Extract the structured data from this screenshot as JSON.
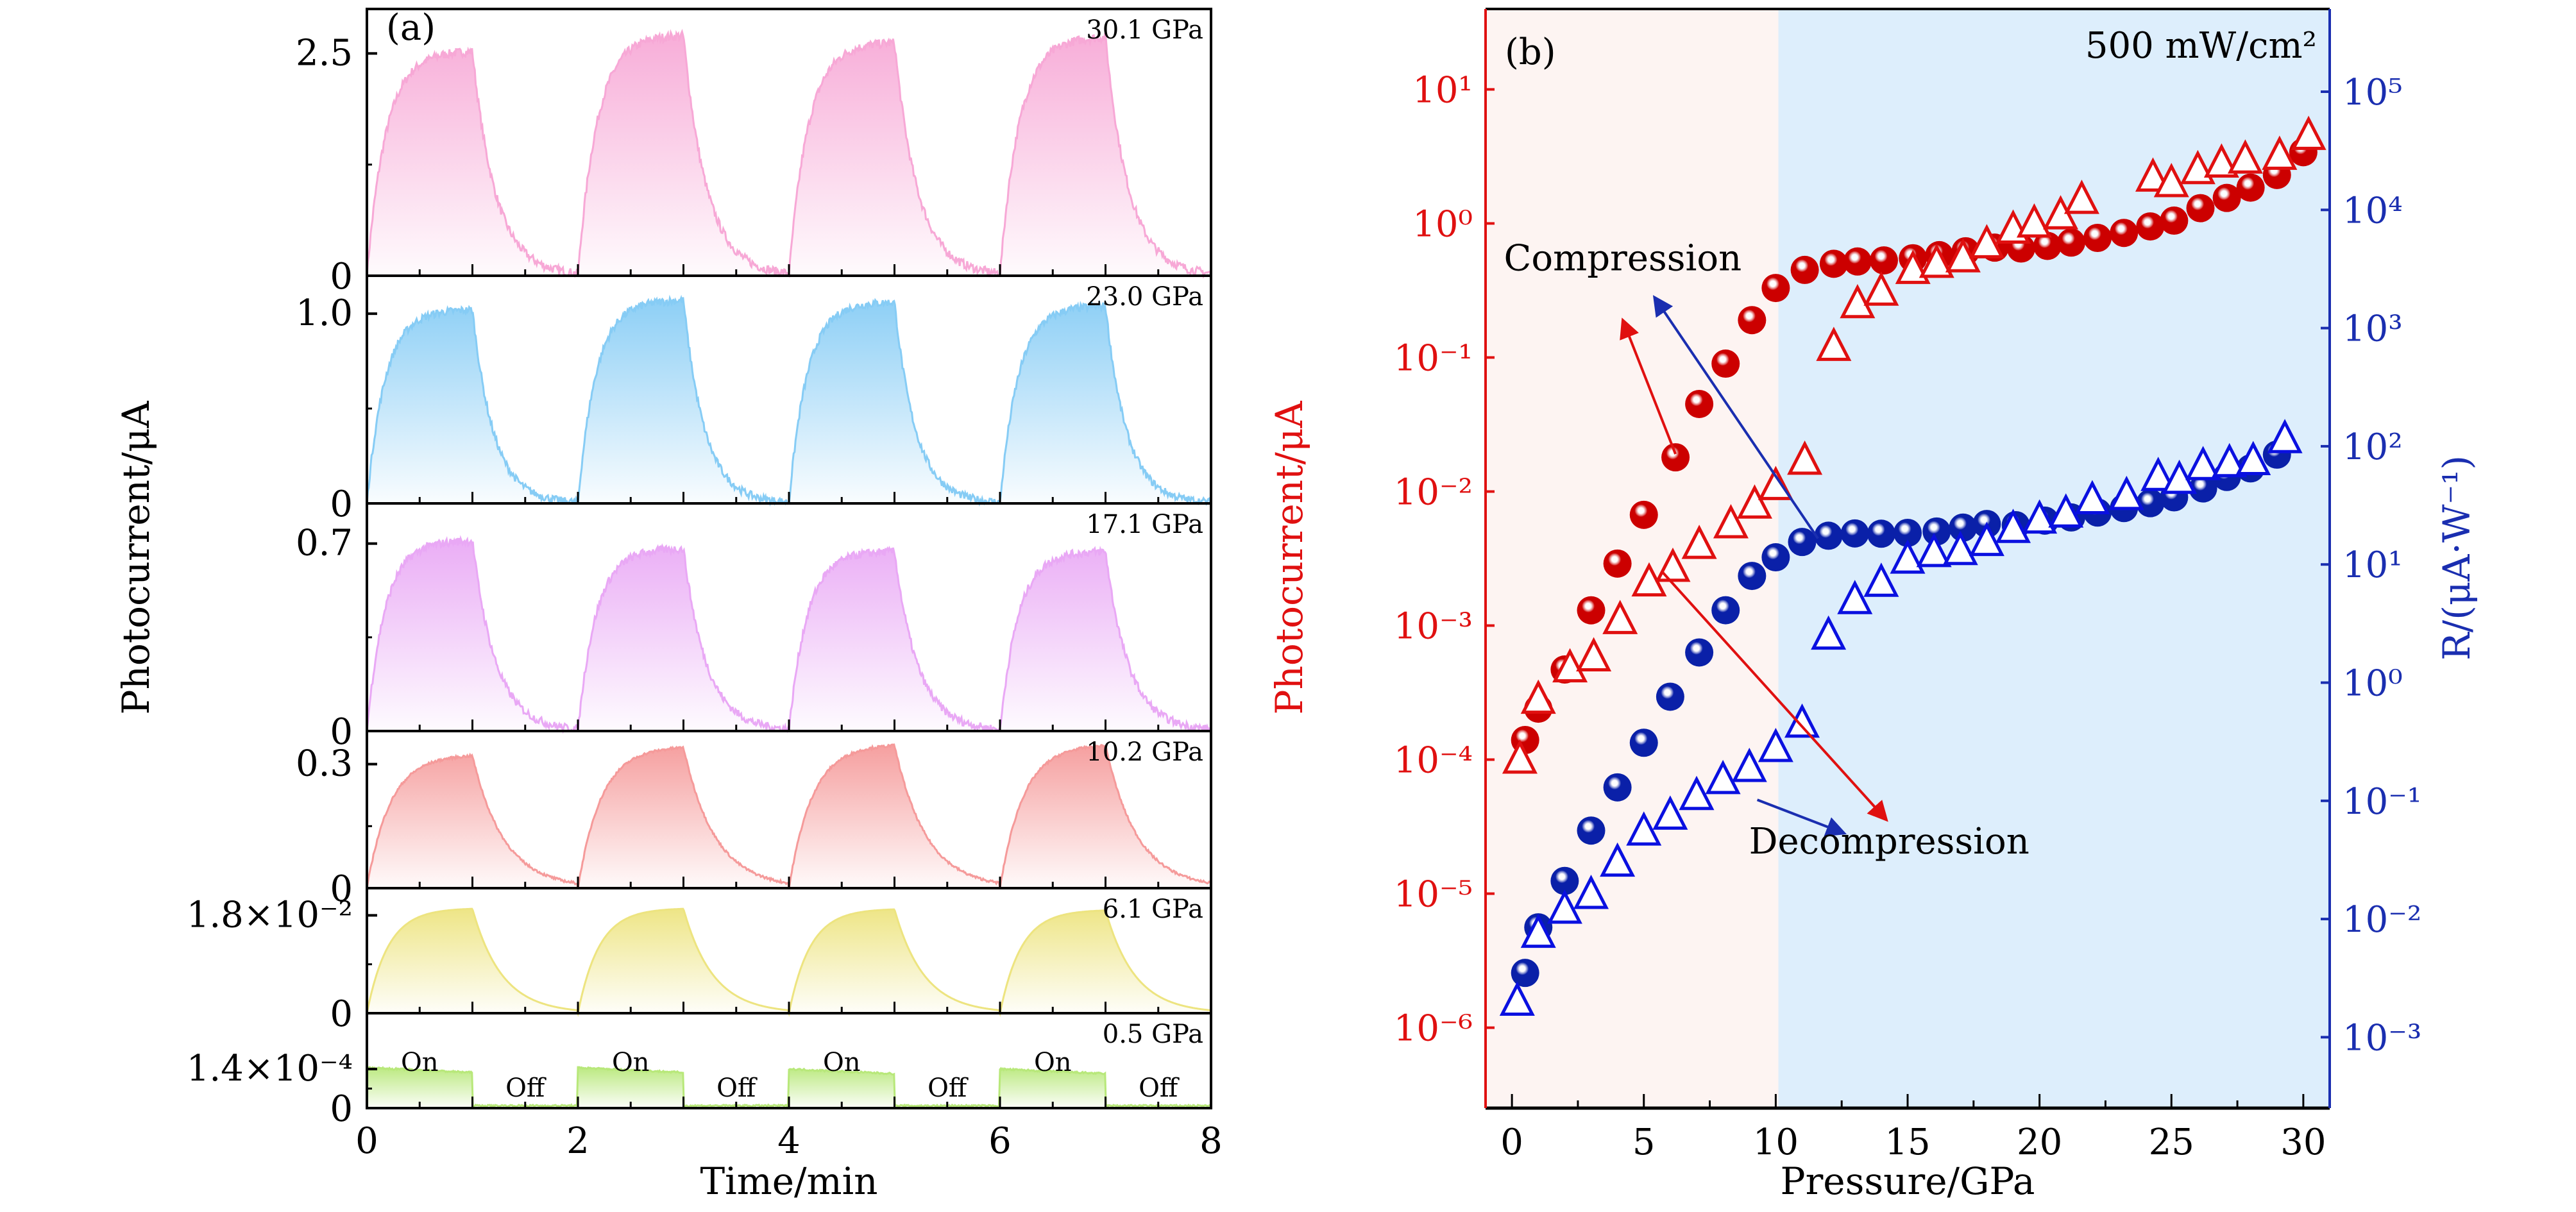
{
  "figure": {
    "panel_a_label": "(a)",
    "panel_b_label": "(b)"
  },
  "chart_data": [
    {
      "id": "panel-a",
      "type": "area",
      "title": "(a)",
      "xlabel": "Time/min",
      "ylabel": "Photocurrent/μA",
      "xlim": [
        0,
        8
      ],
      "xticks": [
        0,
        2,
        4,
        6,
        8
      ],
      "xtick_labels": [
        "0",
        "2",
        "4",
        "6",
        "8"
      ],
      "light_cycles": [
        {
          "on": [
            0,
            1
          ],
          "off": [
            1,
            2
          ]
        },
        {
          "on": [
            2,
            3
          ],
          "off": [
            3,
            4
          ]
        },
        {
          "on": [
            4,
            5
          ],
          "off": [
            5,
            6
          ]
        },
        {
          "on": [
            6,
            7
          ],
          "off": [
            7,
            8
          ]
        }
      ],
      "state_labels": {
        "on": "On",
        "off": "Off"
      },
      "subplots": [
        {
          "pressure_label": "30.1 GPa",
          "color": "#f7a8d6",
          "ylim": [
            0,
            3.0
          ],
          "ytick_value": 2.5,
          "ytick_label": "2.5",
          "zero_label": "0",
          "peaks": [
            2.52,
            2.7,
            2.62,
            2.68
          ],
          "rise_tau": 0.18,
          "decay_tau": 0.22,
          "noise": 0.05
        },
        {
          "pressure_label": "23.0 GPa",
          "color": "#86ccf5",
          "ylim": [
            0,
            1.2
          ],
          "ytick_value": 1.0,
          "ytick_label": "1.0",
          "zero_label": "0",
          "peaks": [
            1.02,
            1.07,
            1.06,
            1.04
          ],
          "rise_tau": 0.17,
          "decay_tau": 0.2,
          "noise": 0.02
        },
        {
          "pressure_label": "17.1 GPa",
          "color": "#e9a8f5",
          "ylim": [
            0,
            0.85
          ],
          "ytick_value": 0.7,
          "ytick_label": "0.7",
          "zero_label": "0",
          "peaks": [
            0.71,
            0.68,
            0.67,
            0.67
          ],
          "rise_tau": 0.17,
          "decay_tau": 0.22,
          "noise": 0.015
        },
        {
          "pressure_label": "10.2 GPa",
          "color": "#f59a9a",
          "ylim": [
            0,
            0.38
          ],
          "ytick_value": 0.3,
          "ytick_label": "0.3",
          "zero_label": "0",
          "peaks": [
            0.32,
            0.34,
            0.345,
            0.345
          ],
          "rise_tau": 0.22,
          "decay_tau": 0.3,
          "noise": 0.003
        },
        {
          "pressure_label": "6.1 GPa",
          "color": "#ede480",
          "ylim": [
            0,
            0.023
          ],
          "ytick_value": 0.018,
          "ytick_label": "1.8×10⁻²",
          "zero_label": "0",
          "peaks": [
            0.0192,
            0.0192,
            0.0191,
            0.0189
          ],
          "rise_tau": 0.2,
          "decay_tau": 0.28,
          "noise": 0.0
        },
        {
          "pressure_label": "0.5 GPa",
          "color": "#b8e87a",
          "ylim": [
            0,
            0.00034
          ],
          "ytick_value": 0.00014,
          "ytick_label": "1.4×10⁻⁴",
          "zero_label": "0",
          "peaks": [
            0.000145,
            0.000145,
            0.00014,
            0.00014
          ],
          "rise_tau": 0.01,
          "decay_tau": 0.01,
          "noise": 3e-06,
          "square": true
        }
      ]
    },
    {
      "id": "panel-b",
      "type": "scatter",
      "title": "(b)",
      "annotation": "500 mW/cm²",
      "xlabel": "Pressure/GPa",
      "ylabel_left": "Photocurrent/μA",
      "ylabel_right": "R/(μA·W⁻¹)",
      "xlim": [
        -1,
        31
      ],
      "xticks": [
        0,
        5,
        10,
        15,
        20,
        25,
        30
      ],
      "xtick_labels": [
        "0",
        "5",
        "10",
        "15",
        "20",
        "25",
        "30"
      ],
      "ylim_left_log10": [
        -6.6,
        1.6
      ],
      "yticks_left_log10": [
        1,
        0,
        -1,
        -2,
        -3,
        -4,
        -5,
        -6
      ],
      "ytick_labels_left": [
        "10¹",
        "10⁰",
        "10⁻¹",
        "10⁻²",
        "10⁻³",
        "10⁻⁴",
        "10⁻⁵",
        "10⁻⁶"
      ],
      "ylim_right_log10": [
        -3.6,
        5.7
      ],
      "yticks_right_log10": [
        5,
        4,
        3,
        2,
        1,
        0,
        -1,
        -2,
        -3
      ],
      "ytick_labels_right": [
        "10⁵",
        "10⁴",
        "10³",
        "10²",
        "10¹",
        "10⁰",
        "10⁻¹",
        "10⁻²",
        "10⁻³"
      ],
      "shaded_regions": [
        {
          "x": [
            -1,
            10.1
          ],
          "color": "#fdf4f2"
        },
        {
          "x": [
            10.1,
            31
          ],
          "color": "#ddeefc"
        }
      ],
      "left_axis_color": "#e01010",
      "right_axis_color": "#1a2eb0",
      "annotations": [
        {
          "text": "Compression",
          "x": 4.2,
          "y_left_log10": -0.35
        },
        {
          "text": "Decompression",
          "x": 14.3,
          "y_left_log10": -4.7
        }
      ],
      "arrows": [
        {
          "color": "#e01010",
          "from": [
            6.2,
            -1.72
          ],
          "to": [
            4.2,
            -0.72
          ]
        },
        {
          "color": "#1a2eb0",
          "from": [
            11.6,
            -2.35
          ],
          "to": [
            5.4,
            -0.55
          ]
        },
        {
          "color": "#e01010",
          "from": [
            5.7,
            -2.6
          ],
          "to": [
            14.2,
            -4.45
          ]
        },
        {
          "color": "#1a2eb0",
          "from": [
            9.3,
            -4.3
          ],
          "to": [
            12.6,
            -4.55
          ]
        }
      ],
      "series": [
        {
          "name": "Photocurrent (compression)",
          "axis": "left",
          "marker": "sphere",
          "color": "#cc0000",
          "x": [
            0.5,
            1.0,
            2.0,
            3.0,
            4.0,
            5.0,
            6.2,
            7.1,
            8.1,
            9.1,
            10.0,
            11.1,
            12.2,
            13.1,
            14.1,
            15.2,
            16.2,
            17.2,
            18.3,
            19.3,
            20.3,
            21.2,
            22.2,
            23.2,
            24.2,
            25.1,
            26.1,
            27.1,
            28.0,
            29.0,
            30.0
          ],
          "y": [
            0.00014,
            0.00024,
            0.00047,
            0.0013,
            0.0029,
            0.0067,
            0.018,
            0.045,
            0.09,
            0.19,
            0.33,
            0.45,
            0.5,
            0.52,
            0.53,
            0.55,
            0.58,
            0.62,
            0.66,
            0.65,
            0.68,
            0.72,
            0.78,
            0.85,
            0.95,
            1.05,
            1.3,
            1.55,
            1.85,
            2.3,
            3.4
          ]
        },
        {
          "name": "Photocurrent (decompression)",
          "axis": "left",
          "marker": "open-triangle",
          "color": "#e01010",
          "x": [
            0.3,
            1.0,
            2.2,
            3.1,
            4.1,
            5.2,
            6.1,
            7.1,
            8.3,
            9.2,
            10.0,
            11.1,
            12.2,
            13.1,
            14.0,
            15.2,
            16.1,
            17.1,
            18.0,
            19.0,
            19.8,
            20.8,
            21.6,
            24.3,
            25.0,
            26.0,
            26.9,
            27.8,
            29.1,
            30.2
          ],
          "y": [
            0.0001,
            0.00028,
            0.00048,
            0.00058,
            0.0011,
            0.0021,
            0.0027,
            0.004,
            0.0057,
            0.008,
            0.011,
            0.017,
            0.12,
            0.25,
            0.31,
            0.45,
            0.5,
            0.55,
            0.7,
            0.9,
            1.0,
            1.15,
            1.5,
            2.2,
            2.0,
            2.5,
            2.8,
            3.0,
            3.2,
            4.5
          ]
        },
        {
          "name": "Responsivity (compression)",
          "axis": "right",
          "marker": "sphere",
          "color": "#0a20a8",
          "x": [
            0.5,
            1.0,
            2.0,
            3.0,
            4.0,
            5.0,
            6.0,
            7.1,
            8.1,
            9.1,
            10.0,
            11.0,
            12.0,
            13.0,
            14.0,
            15.0,
            16.1,
            17.1,
            18.0,
            19.1,
            20.2,
            21.2,
            22.2,
            23.2,
            24.2,
            25.1,
            26.2,
            27.1,
            28.0,
            29.0
          ],
          "y": [
            0.0035,
            0.0085,
            0.021,
            0.056,
            0.13,
            0.31,
            0.76,
            1.8,
            4.1,
            8.0,
            11.5,
            15.5,
            17.5,
            18.3,
            18.2,
            18.5,
            19.0,
            20.5,
            22.0,
            21.5,
            23.5,
            25.0,
            27.5,
            30.0,
            33.0,
            37.0,
            44.0,
            55.0,
            65.0,
            85.0
          ]
        },
        {
          "name": "Responsivity (decompression)",
          "axis": "right",
          "marker": "open-triangle",
          "color": "#0a10e0",
          "x": [
            0.2,
            1.0,
            2.0,
            3.0,
            4.0,
            5.0,
            6.0,
            7.0,
            8.0,
            9.0,
            10.0,
            11.0,
            12.0,
            13.0,
            14.0,
            15.0,
            16.0,
            17.0,
            18.0,
            19.0,
            20.0,
            21.0,
            22.0,
            23.3,
            24.5,
            25.3,
            26.2,
            27.2,
            28.1,
            29.3
          ],
          "y": [
            0.002,
            0.0075,
            0.012,
            0.016,
            0.03,
            0.055,
            0.075,
            0.11,
            0.15,
            0.19,
            0.28,
            0.45,
            2.5,
            5.0,
            7.0,
            11.0,
            12.5,
            13.0,
            15.5,
            20.0,
            24.0,
            27.0,
            35.0,
            38.0,
            55.0,
            52.0,
            68.0,
            72.0,
            75.0,
            115.0
          ]
        }
      ]
    }
  ]
}
